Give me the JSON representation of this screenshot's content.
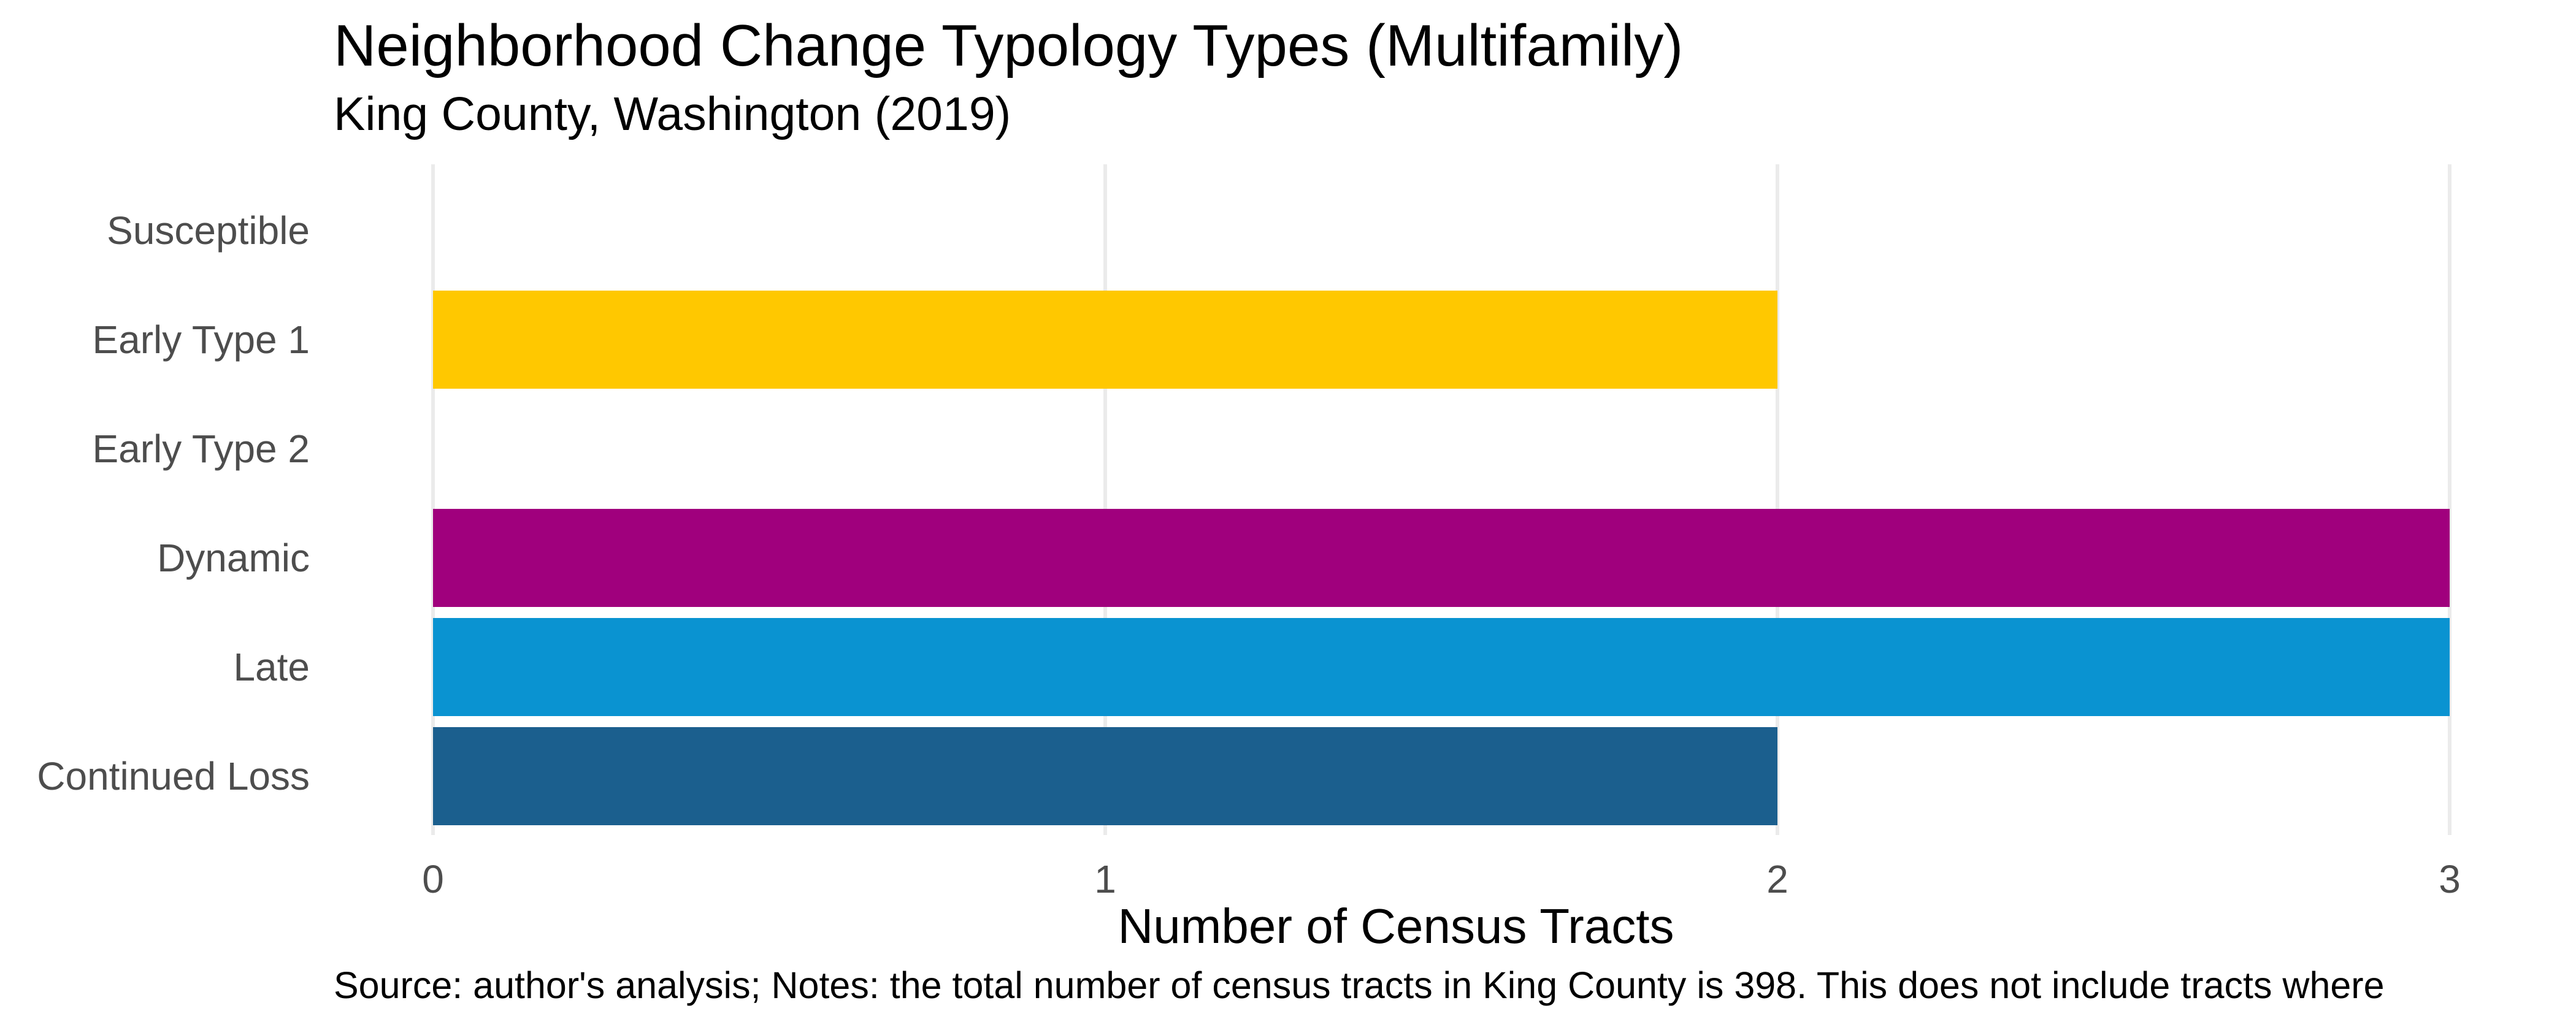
{
  "chart_data": {
    "type": "bar",
    "orientation": "horizontal",
    "title": "Neighborhood Change Typology Types (Multifamily)",
    "subtitle": "King County, Washington (2019)",
    "xlabel": "Number of Census Tracts",
    "ylabel": "",
    "caption": "Source: author's analysis; Notes: the total number of census tracts in King County is 398. This does not include tracts where",
    "categories": [
      "Susceptible",
      "Early Type 1",
      "Early Type 2",
      "Dynamic",
      "Late",
      "Continued Loss"
    ],
    "values": [
      0,
      2,
      0,
      3,
      3,
      2
    ],
    "colors": [
      "#FEE08B",
      "#FFC800",
      "#F58A1F",
      "#A0007D",
      "#0A93D1",
      "#1B5F8E"
    ],
    "xlim": [
      0,
      3
    ],
    "xticks": [
      0,
      1,
      2,
      3
    ],
    "xtick_labels": [
      "0",
      "1",
      "2",
      "3"
    ],
    "grid": "vertical major gridlines only",
    "legend": "none"
  },
  "style": {
    "gridline_color": "#EBEBEB",
    "tick_label_color": "#4D4D4D",
    "text_color": "#000000"
  }
}
